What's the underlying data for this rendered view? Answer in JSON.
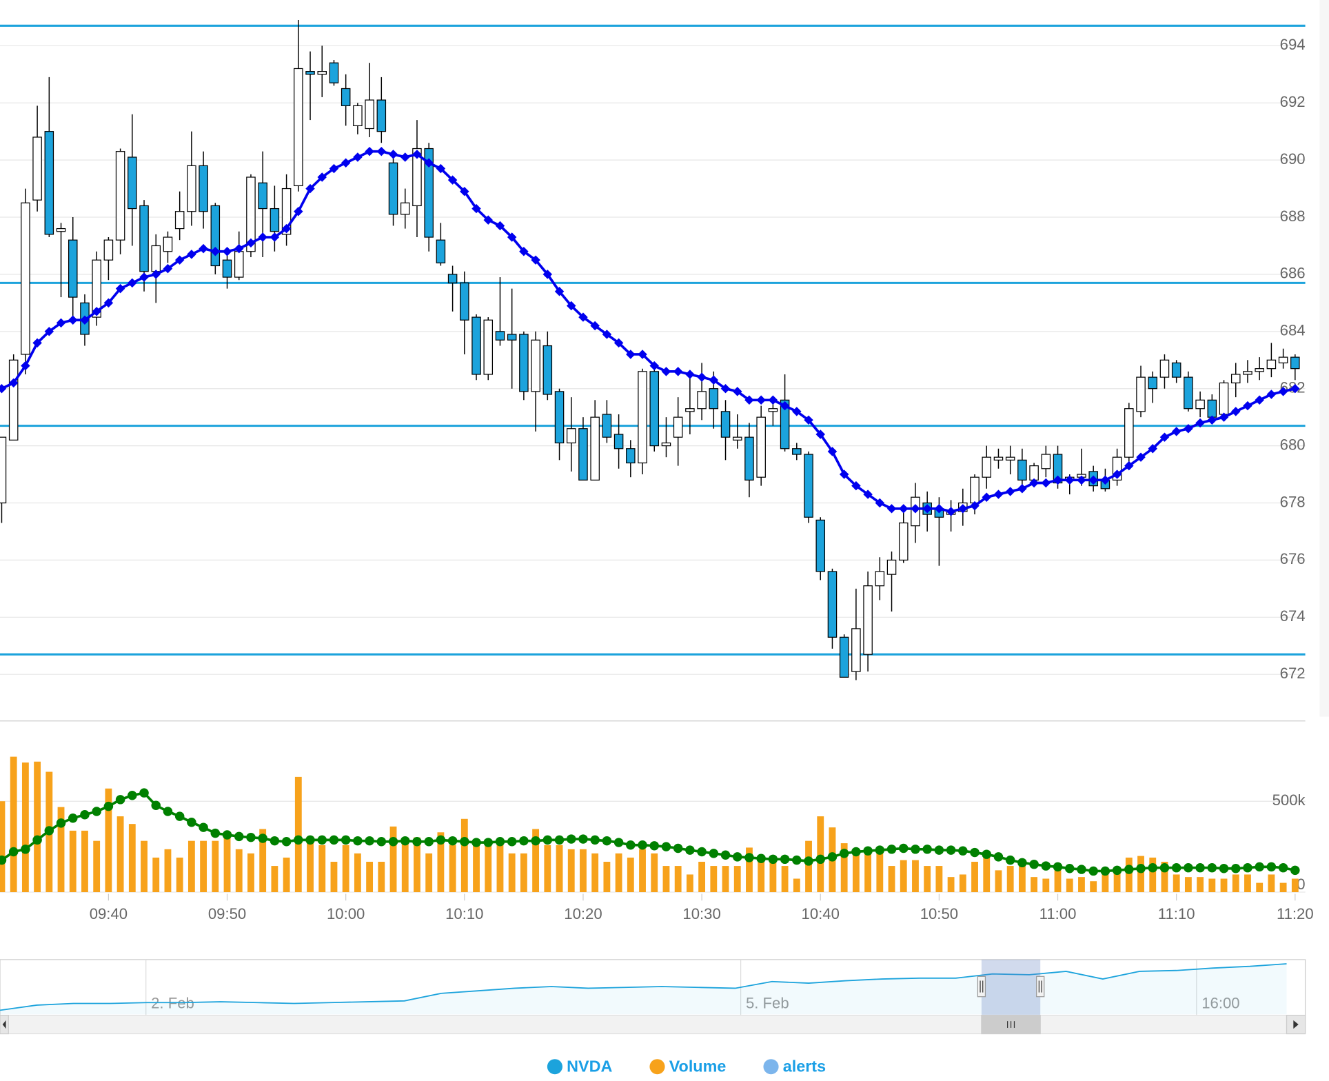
{
  "chart_data": {
    "type": "candlestick",
    "x": [
      "09:31",
      "09:32",
      "09:33",
      "09:34",
      "09:35",
      "09:36",
      "09:37",
      "09:38",
      "09:39",
      "09:40",
      "09:41",
      "09:42",
      "09:43",
      "09:44",
      "09:45",
      "09:46",
      "09:47",
      "09:48",
      "09:49",
      "09:50",
      "09:51",
      "09:52",
      "09:53",
      "09:54",
      "09:55",
      "09:56",
      "09:57",
      "09:58",
      "09:59",
      "10:00",
      "10:01",
      "10:02",
      "10:03",
      "10:04",
      "10:05",
      "10:06",
      "10:07",
      "10:08",
      "10:09",
      "10:10",
      "10:11",
      "10:12",
      "10:13",
      "10:14",
      "10:15",
      "10:16",
      "10:17",
      "10:18",
      "10:19",
      "10:20",
      "10:21",
      "10:22",
      "10:23",
      "10:24",
      "10:25",
      "10:26",
      "10:27",
      "10:28",
      "10:29",
      "10:30",
      "10:31",
      "10:32",
      "10:33",
      "10:34",
      "10:35",
      "10:36",
      "10:37",
      "10:38",
      "10:39",
      "10:40",
      "10:41",
      "10:42",
      "10:43",
      "10:44",
      "10:45",
      "10:46",
      "10:47",
      "10:48",
      "10:49",
      "10:50",
      "10:51",
      "10:52",
      "10:53",
      "10:54",
      "10:55",
      "10:56",
      "10:57",
      "10:58",
      "10:59",
      "11:00",
      "11:01",
      "11:02",
      "11:03",
      "11:04",
      "11:05",
      "11:06",
      "11:07",
      "11:08",
      "11:09",
      "11:10",
      "11:11",
      "11:12",
      "11:13",
      "11:14",
      "11:15",
      "11:16",
      "11:17",
      "11:18",
      "11:19",
      "11:20"
    ],
    "xticks": [
      "09:40",
      "09:50",
      "10:00",
      "10:10",
      "10:20",
      "10:30",
      "10:40",
      "10:50",
      "11:00",
      "11:10",
      "11:20"
    ],
    "ylim": [
      670.4,
      695.6
    ],
    "yticks": [
      672,
      674,
      676,
      678,
      680,
      682,
      684,
      686,
      688,
      690,
      692,
      694
    ],
    "y2lim": [
      0,
      900000
    ],
    "y2ticks": [
      0,
      {
        "value": 500000,
        "label": "500k"
      }
    ],
    "grid": true,
    "legend": "bottom",
    "legend_text_color": "#1a9fe6",
    "alerts": {
      "name": "alerts",
      "color": "#7cb5ec",
      "line_color": "#1ca3dc",
      "values": [
        694.7,
        685.7,
        680.7,
        672.7
      ]
    },
    "series": [
      {
        "name": "NVDA",
        "type": "candlestick",
        "color": "#1ca3dc",
        "up_color": "#ffffff",
        "open": [
          678.0,
          680.2,
          683.2,
          688.6,
          691.0,
          687.5,
          687.2,
          685.0,
          684.5,
          686.5,
          687.2,
          690.1,
          688.4,
          686.1,
          686.8,
          687.6,
          688.2,
          689.8,
          688.4,
          686.5,
          685.9,
          686.8,
          689.2,
          688.3,
          687.4,
          689.1,
          693.1,
          693.0,
          693.4,
          692.5,
          691.2,
          691.1,
          692.1,
          689.9,
          688.1,
          688.4,
          690.4,
          687.2,
          686.0,
          685.7,
          684.5,
          682.5,
          684.0,
          683.9,
          683.9,
          681.9,
          683.5,
          681.9,
          680.1,
          680.6,
          678.8,
          681.1,
          680.4,
          679.9,
          679.4,
          682.6,
          680.0,
          680.3,
          681.2,
          681.3,
          682.0,
          681.2,
          680.2,
          680.3,
          678.9,
          681.2,
          681.6,
          679.9,
          679.7,
          677.4,
          675.6,
          673.3,
          672.1,
          672.7,
          675.1,
          675.5,
          676.0,
          677.2,
          678.0,
          677.8,
          677.6,
          677.7,
          678.0,
          678.9,
          679.5,
          679.5,
          679.5,
          678.8,
          679.2,
          679.7,
          678.8,
          678.9,
          679.1,
          678.8,
          678.8,
          679.6,
          681.2,
          682.4,
          682.4,
          682.9,
          682.4,
          681.3,
          681.6,
          681.1,
          682.2,
          682.5,
          682.6,
          682.7,
          682.9,
          683.1
        ],
        "high": [
          680.3,
          683.2,
          689.0,
          691.9,
          692.9,
          687.8,
          688.0,
          685.3,
          686.8,
          687.3,
          690.4,
          691.6,
          688.6,
          687.4,
          687.5,
          688.9,
          691.0,
          690.3,
          688.5,
          686.8,
          687.5,
          689.5,
          690.3,
          689.1,
          689.5,
          694.9,
          693.8,
          694.0,
          693.5,
          693.0,
          692.0,
          693.4,
          692.9,
          690.1,
          689.0,
          691.4,
          690.6,
          687.8,
          686.3,
          686.1,
          684.6,
          684.5,
          685.9,
          685.5,
          684.0,
          684.0,
          684.0,
          682.0,
          681.7,
          681.0,
          681.6,
          681.6,
          681.1,
          680.2,
          682.7,
          682.8,
          681.0,
          681.7,
          682.4,
          682.9,
          682.6,
          681.6,
          681.1,
          680.8,
          681.4,
          681.6,
          682.5,
          680.1,
          679.8,
          677.5,
          675.7,
          673.4,
          675.0,
          675.6,
          676.1,
          676.3,
          677.9,
          678.7,
          678.4,
          678.2,
          678.1,
          678.5,
          679.0,
          680.0,
          679.9,
          680.0,
          679.9,
          679.4,
          680.0,
          680.0,
          679.0,
          679.9,
          679.3,
          679.2,
          679.9,
          681.5,
          682.8,
          682.6,
          683.2,
          683.0,
          682.6,
          681.9,
          681.8,
          682.3,
          682.9,
          683.0,
          683.1,
          683.6,
          683.4,
          683.2
        ],
        "low": [
          677.3,
          680.2,
          682.5,
          688.2,
          687.3,
          685.2,
          684.5,
          683.5,
          684.2,
          685.8,
          686.7,
          687.0,
          685.4,
          685.0,
          686.4,
          687.2,
          687.7,
          687.6,
          686.0,
          685.5,
          685.8,
          686.6,
          686.6,
          686.8,
          687.0,
          688.9,
          691.4,
          692.2,
          692.6,
          691.2,
          690.9,
          690.8,
          690.6,
          687.7,
          687.6,
          687.3,
          686.8,
          686.3,
          684.7,
          683.2,
          682.3,
          682.3,
          683.5,
          682.0,
          681.6,
          680.5,
          681.6,
          679.5,
          679.1,
          678.8,
          678.8,
          680.1,
          679.2,
          678.9,
          679.0,
          679.8,
          679.6,
          679.3,
          680.4,
          680.9,
          680.6,
          679.5,
          679.9,
          678.2,
          678.6,
          680.7,
          679.8,
          679.5,
          677.3,
          675.3,
          672.9,
          671.9,
          671.8,
          672.1,
          674.6,
          674.2,
          675.9,
          676.6,
          677.0,
          675.8,
          677.0,
          677.2,
          677.6,
          678.5,
          679.2,
          679.0,
          678.6,
          678.6,
          678.9,
          678.5,
          678.3,
          678.6,
          678.4,
          678.4,
          678.6,
          679.3,
          681.0,
          681.5,
          682.0,
          682.2,
          681.2,
          681.0,
          680.9,
          680.9,
          681.7,
          682.2,
          682.3,
          682.4,
          682.7,
          682.3
        ],
        "close": [
          680.3,
          683.0,
          688.5,
          690.8,
          687.4,
          687.6,
          685.2,
          683.9,
          686.5,
          687.2,
          690.3,
          688.3,
          686.1,
          687.0,
          687.3,
          688.2,
          689.8,
          688.2,
          686.3,
          685.9,
          686.8,
          689.4,
          688.3,
          687.5,
          689.0,
          693.2,
          693.0,
          693.1,
          692.7,
          691.9,
          691.9,
          692.1,
          691.0,
          688.1,
          688.5,
          690.4,
          687.3,
          686.4,
          685.7,
          684.4,
          682.5,
          684.4,
          683.7,
          683.7,
          681.9,
          683.7,
          681.8,
          680.1,
          680.6,
          678.8,
          681.0,
          680.3,
          679.9,
          679.4,
          682.6,
          680.0,
          680.1,
          681.0,
          681.3,
          681.9,
          681.3,
          680.3,
          680.3,
          678.8,
          681.0,
          681.3,
          679.9,
          679.7,
          677.5,
          675.6,
          673.3,
          671.9,
          673.6,
          675.1,
          675.6,
          676.0,
          677.3,
          678.2,
          677.6,
          677.5,
          677.7,
          678.0,
          678.9,
          679.6,
          679.6,
          679.6,
          678.8,
          679.3,
          679.7,
          678.7,
          678.9,
          679.0,
          678.6,
          678.5,
          679.6,
          681.3,
          682.4,
          682.0,
          683.0,
          682.4,
          681.3,
          681.6,
          681.0,
          682.2,
          682.5,
          682.6,
          682.7,
          683.0,
          683.1,
          682.7
        ]
      },
      {
        "type": "line",
        "color": "#0000ee",
        "marker": "diamond",
        "values": [
          682.0,
          682.2,
          682.8,
          683.6,
          684.0,
          684.3,
          684.4,
          684.4,
          684.7,
          685.0,
          685.5,
          685.7,
          685.9,
          686.0,
          686.2,
          686.5,
          686.7,
          686.9,
          686.8,
          686.8,
          686.9,
          687.1,
          687.3,
          687.3,
          687.6,
          688.2,
          689.0,
          689.4,
          689.7,
          689.9,
          690.1,
          690.3,
          690.3,
          690.2,
          690.1,
          690.2,
          689.9,
          689.7,
          689.3,
          688.9,
          688.3,
          687.9,
          687.7,
          687.3,
          686.8,
          686.5,
          686.0,
          685.4,
          684.9,
          684.5,
          684.2,
          683.9,
          683.6,
          683.2,
          683.2,
          682.8,
          682.6,
          682.6,
          682.5,
          682.4,
          682.3,
          682.0,
          681.9,
          681.6,
          681.6,
          681.6,
          681.4,
          681.2,
          680.9,
          680.4,
          679.8,
          679.0,
          678.6,
          678.3,
          678.0,
          677.8,
          677.8,
          677.8,
          677.8,
          677.8,
          677.7,
          677.8,
          677.9,
          678.2,
          678.3,
          678.4,
          678.5,
          678.7,
          678.7,
          678.8,
          678.8,
          678.8,
          678.8,
          678.8,
          679.0,
          679.3,
          679.6,
          679.9,
          680.3,
          680.5,
          680.6,
          680.8,
          680.9,
          681.0,
          681.2,
          681.4,
          681.6,
          681.8,
          681.9,
          682.0
        ]
      },
      {
        "name": "Volume",
        "type": "column",
        "axis": "y2",
        "color": "#f7a21b",
        "values": [
          500000,
          745000,
          713000,
          718000,
          662000,
          468000,
          338000,
          338000,
          282000,
          570000,
          417000,
          375000,
          282000,
          190000,
          236000,
          190000,
          282000,
          282000,
          282000,
          306000,
          236000,
          213000,
          347000,
          144000,
          190000,
          634000,
          306000,
          259000,
          167000,
          259000,
          213000,
          167000,
          167000,
          361000,
          282000,
          301000,
          213000,
          329000,
          259000,
          403000,
          282000,
          282000,
          282000,
          213000,
          213000,
          347000,
          259000,
          259000,
          236000,
          236000,
          213000,
          167000,
          213000,
          190000,
          236000,
          213000,
          144000,
          144000,
          97000,
          167000,
          144000,
          144000,
          144000,
          245000,
          167000,
          167000,
          144000,
          74000,
          282000,
          417000,
          356000,
          269000,
          236000,
          236000,
          213000,
          144000,
          176000,
          176000,
          144000,
          144000,
          83000,
          97000,
          167000,
          213000,
          120000,
          144000,
          144000,
          83000,
          74000,
          120000,
          74000,
          83000,
          60000,
          97000,
          120000,
          190000,
          199000,
          190000,
          167000,
          97000,
          83000,
          83000,
          74000,
          74000,
          97000,
          97000,
          51000,
          97000,
          51000,
          74000
        ]
      },
      {
        "type": "line",
        "axis": "y2",
        "color": "#008000",
        "marker": "circle",
        "values": [
          176000,
          222000,
          236000,
          287000,
          338000,
          380000,
          407000,
          426000,
          444000,
          472000,
          509000,
          532000,
          546000,
          477000,
          444000,
          417000,
          384000,
          356000,
          324000,
          315000,
          306000,
          301000,
          296000,
          282000,
          278000,
          287000,
          287000,
          287000,
          287000,
          287000,
          282000,
          282000,
          278000,
          278000,
          282000,
          278000,
          278000,
          287000,
          282000,
          278000,
          273000,
          273000,
          278000,
          278000,
          282000,
          282000,
          287000,
          287000,
          292000,
          292000,
          287000,
          282000,
          273000,
          259000,
          259000,
          255000,
          250000,
          241000,
          231000,
          222000,
          213000,
          204000,
          194000,
          190000,
          185000,
          181000,
          181000,
          176000,
          171000,
          181000,
          194000,
          213000,
          222000,
          227000,
          231000,
          236000,
          241000,
          236000,
          236000,
          231000,
          231000,
          227000,
          218000,
          208000,
          194000,
          176000,
          162000,
          153000,
          144000,
          139000,
          130000,
          125000,
          116000,
          116000,
          120000,
          125000,
          130000,
          134000,
          134000,
          134000,
          134000,
          134000,
          134000,
          130000,
          130000,
          134000,
          139000,
          139000,
          134000,
          120000
        ]
      }
    ],
    "navigator": {
      "color": "#1ca3dc",
      "xlim": [
        0,
        35
      ],
      "ylim": [
        640,
        690
      ],
      "xticks": [
        {
          "value": 3.97,
          "label": "2. Feb"
        },
        {
          "value": 20.15,
          "label": "5. Feb"
        },
        {
          "value": 32.55,
          "label": "16:00"
        }
      ],
      "window": [
        26.7,
        28.3
      ],
      "values": [
        643.9,
        648.7,
        650.3,
        650.3,
        651.1,
        651.1,
        651.9,
        651.1,
        650.3,
        651.1,
        651.9,
        652.7,
        659.8,
        662.2,
        664.6,
        666.2,
        664.6,
        665.4,
        666.2,
        665.4,
        664.6,
        670.9,
        669.4,
        671.7,
        673.3,
        674.1,
        674.1,
        678.1,
        677.3,
        680.5,
        673.3,
        680.5,
        681.3,
        683.6,
        685.2,
        687.6
      ]
    }
  }
}
